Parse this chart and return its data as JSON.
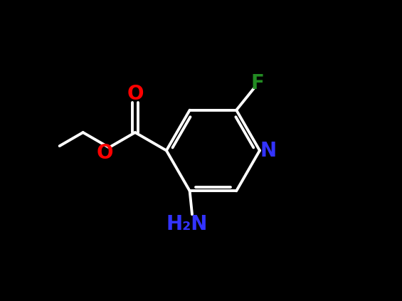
{
  "background_color": "#000000",
  "bond_color": "#ffffff",
  "bond_width": 2.8,
  "atoms": {
    "N_ring": {
      "label": "N",
      "color": "#3333ff",
      "fontsize": 20,
      "fontweight": "bold"
    },
    "O_carbonyl": {
      "label": "O",
      "color": "#ff0000",
      "fontsize": 20,
      "fontweight": "bold"
    },
    "O_ester": {
      "label": "O",
      "color": "#ff0000",
      "fontsize": 20,
      "fontweight": "bold"
    },
    "F": {
      "label": "F",
      "color": "#228b22",
      "fontsize": 20,
      "fontweight": "bold"
    },
    "NH2": {
      "label": "H₂N",
      "color": "#3333ff",
      "fontsize": 20,
      "fontweight": "bold"
    }
  },
  "figsize": [
    5.65,
    4.23
  ],
  "dpi": 100
}
